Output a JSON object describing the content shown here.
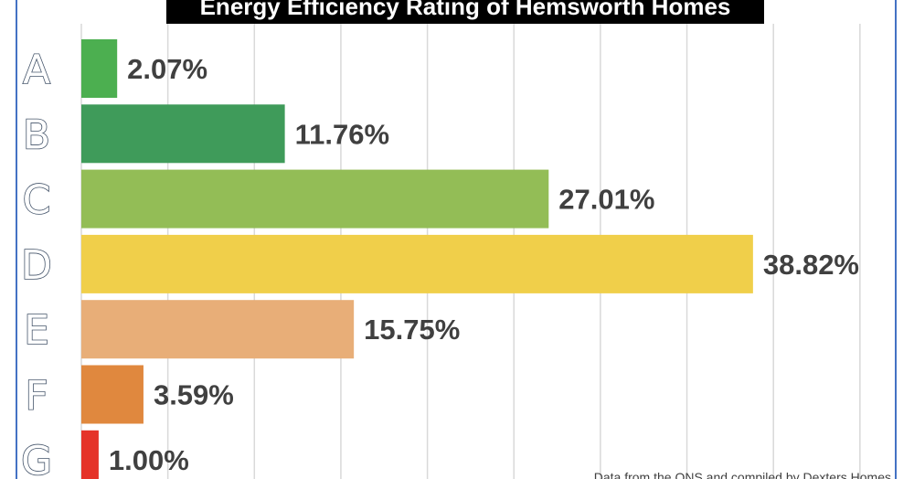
{
  "chart_data": {
    "type": "bar",
    "orientation": "horizontal",
    "title": "Energy Efficiency Rating of Hemsworth Homes",
    "categories": [
      "A",
      "B",
      "C",
      "D",
      "E",
      "F",
      "G"
    ],
    "values": [
      2.07,
      11.76,
      27.01,
      38.82,
      15.75,
      3.59,
      1.0
    ],
    "value_labels": [
      "2.07%",
      "11.76%",
      "27.01%",
      "38.82%",
      "15.75%",
      "3.59%",
      "1.00%"
    ],
    "bar_colors": [
      "#4caf50",
      "#3f9b5a",
      "#93bd56",
      "#f0cf4a",
      "#e8ae78",
      "#e0883e",
      "#e53329"
    ],
    "xlim": [
      0,
      45
    ],
    "grid": "vertical",
    "footnote": "Data from the ONS and compiled by Dexters Homes",
    "colors": {
      "title_background": "#000000",
      "title_text": "#ffffff",
      "gridline": "#d9d9d9",
      "frame": "#4472c4",
      "value_text": "#404040"
    }
  }
}
